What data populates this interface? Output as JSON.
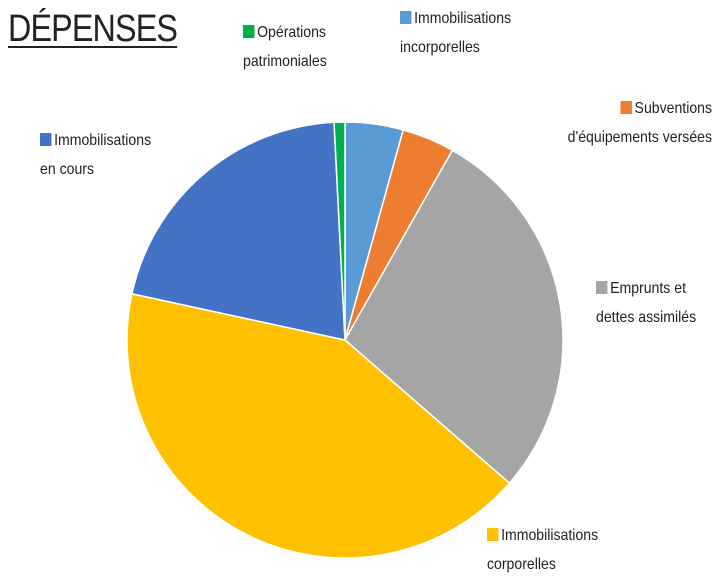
{
  "chart_data": {
    "type": "pie",
    "title": "DÉPENSES",
    "series": [
      {
        "name": "Immobilisations\nincorporelles",
        "color": "#5b9bd5",
        "values": [
          4.3
        ]
      },
      {
        "name": "Subventions\nd'équipements versées",
        "color": "#ed7d31",
        "values": [
          3.9
        ]
      },
      {
        "name": "Emprunts et\ndettes assimilés",
        "color": "#a5a5a5",
        "values": [
          28.2
        ]
      },
      {
        "name": "Immobilisations\ncorporelles",
        "color": "#ffc000",
        "values": [
          42.0
        ]
      },
      {
        "name": "Immobilisations\nen cours",
        "color": "#4472c4",
        "values": [
          20.8
        ]
      },
      {
        "name": "Opérations\npatrimoniales",
        "color": "#00b050",
        "values": [
          0.8
        ]
      }
    ]
  }
}
